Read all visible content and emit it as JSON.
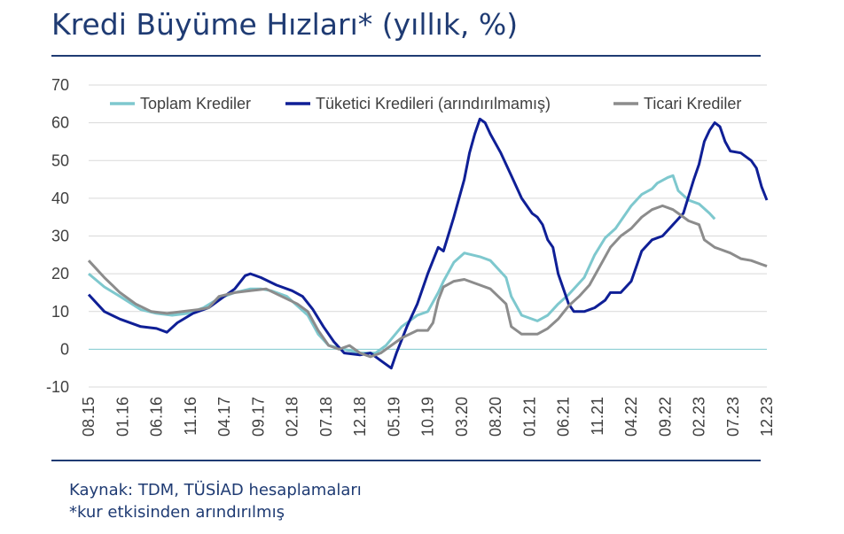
{
  "title": "Kredi Büyüme Hızları* (yıllık, %)",
  "source": "Kaynak: TDM, TÜSİAD hesaplamaları",
  "footnote": "*kur etkisinden arındırılmış",
  "chart_data": {
    "type": "line",
    "ylim": [
      -10,
      70
    ],
    "yticks": [
      -10,
      0,
      10,
      20,
      30,
      40,
      50,
      60,
      70
    ],
    "grid": true,
    "legend": "top",
    "x_tick_labels": [
      "08.15",
      "01.16",
      "06.16",
      "11.16",
      "04.17",
      "09.17",
      "02.18",
      "07.18",
      "12.18",
      "05.19",
      "10.19",
      "03.20",
      "08.20",
      "01.21",
      "06.21",
      "11.21",
      "04.22",
      "09.22",
      "02.23",
      "07.23",
      "12.23"
    ],
    "x_start": "08.15",
    "x_end": "12.23",
    "x_unit": "months",
    "series": [
      {
        "name": "Toplam Krediler",
        "color": "#7ec8ce",
        "points": [
          [
            0,
            20
          ],
          [
            3,
            16.5
          ],
          [
            6,
            14
          ],
          [
            10,
            10.5
          ],
          [
            13,
            9.5
          ],
          [
            16,
            9
          ],
          [
            19,
            9.5
          ],
          [
            22,
            11
          ],
          [
            25,
            13.5
          ],
          [
            28,
            15
          ],
          [
            31,
            16
          ],
          [
            33,
            16
          ],
          [
            35,
            15.5
          ],
          [
            38,
            14
          ],
          [
            40,
            11.5
          ],
          [
            42,
            9
          ],
          [
            44,
            4
          ],
          [
            46,
            1
          ],
          [
            49,
            0
          ],
          [
            52,
            -1
          ],
          [
            55,
            -1
          ],
          [
            57,
            1
          ],
          [
            60,
            6
          ],
          [
            63,
            9
          ],
          [
            65,
            10
          ],
          [
            67,
            15
          ],
          [
            68,
            18
          ],
          [
            70,
            23
          ],
          [
            72,
            25.5
          ],
          [
            75,
            24.5
          ],
          [
            77,
            23.5
          ],
          [
            80,
            19
          ],
          [
            81,
            14
          ],
          [
            83,
            9
          ],
          [
            86,
            7.5
          ],
          [
            88,
            9
          ],
          [
            90,
            12
          ],
          [
            92,
            14.5
          ],
          [
            95,
            19
          ],
          [
            97,
            25
          ],
          [
            99,
            29.5
          ],
          [
            101,
            32
          ],
          [
            104,
            38
          ],
          [
            106,
            41
          ],
          [
            108,
            42.5
          ],
          [
            109,
            44
          ],
          [
            111,
            45.5
          ],
          [
            112,
            46
          ],
          [
            113,
            42
          ],
          [
            115,
            39.5
          ],
          [
            117,
            38.5
          ],
          [
            119,
            36
          ],
          [
            120,
            34.5
          ]
        ]
      },
      {
        "name": "Tüketici Kredileri (arındırılmamış)",
        "color": "#0f1f96",
        "points": [
          [
            0,
            14.5
          ],
          [
            3,
            10
          ],
          [
            6,
            8
          ],
          [
            10,
            6
          ],
          [
            13,
            5.5
          ],
          [
            15,
            4.5
          ],
          [
            17,
            7
          ],
          [
            20,
            9.5
          ],
          [
            23,
            11
          ],
          [
            26,
            14
          ],
          [
            28,
            16
          ],
          [
            30,
            19.5
          ],
          [
            31,
            20
          ],
          [
            33,
            19
          ],
          [
            36,
            17
          ],
          [
            39,
            15.5
          ],
          [
            41,
            14
          ],
          [
            43,
            10.5
          ],
          [
            45,
            6
          ],
          [
            47,
            2
          ],
          [
            49,
            -1
          ],
          [
            52,
            -1.5
          ],
          [
            54,
            -1
          ],
          [
            56,
            -3
          ],
          [
            58,
            -5
          ],
          [
            59,
            -1
          ],
          [
            61,
            6
          ],
          [
            63,
            12
          ],
          [
            65,
            20
          ],
          [
            67,
            27
          ],
          [
            68,
            26
          ],
          [
            70,
            35
          ],
          [
            72,
            45
          ],
          [
            73,
            52
          ],
          [
            74,
            57
          ],
          [
            75,
            61
          ],
          [
            76,
            60
          ],
          [
            77,
            57
          ],
          [
            79,
            52
          ],
          [
            81,
            46
          ],
          [
            83,
            40
          ],
          [
            85,
            36
          ],
          [
            86,
            35
          ],
          [
            87,
            33
          ],
          [
            88,
            29
          ],
          [
            89,
            27
          ],
          [
            90,
            20
          ],
          [
            92,
            12
          ],
          [
            93,
            10
          ],
          [
            95,
            10
          ],
          [
            97,
            11
          ],
          [
            99,
            13
          ],
          [
            100,
            15
          ],
          [
            102,
            15
          ],
          [
            104,
            18
          ],
          [
            105,
            22
          ],
          [
            106,
            26
          ],
          [
            108,
            29
          ],
          [
            110,
            30
          ],
          [
            112,
            33
          ],
          [
            114,
            36
          ],
          [
            116,
            45
          ],
          [
            117,
            49
          ],
          [
            118,
            55
          ],
          [
            119,
            58
          ],
          [
            120,
            60
          ],
          [
            121,
            59
          ],
          [
            122,
            55
          ],
          [
            123,
            52.5
          ],
          [
            125,
            52
          ],
          [
            127,
            50
          ],
          [
            128,
            48
          ],
          [
            129,
            43
          ],
          [
            130,
            39.5
          ]
        ]
      },
      {
        "name": "Ticari Krediler",
        "color": "#8c8c8c",
        "points": [
          [
            0,
            23.5
          ],
          [
            3,
            19
          ],
          [
            6,
            15
          ],
          [
            9,
            12
          ],
          [
            12,
            10
          ],
          [
            15,
            9.5
          ],
          [
            18,
            10
          ],
          [
            21,
            10.5
          ],
          [
            23,
            11
          ],
          [
            25,
            14
          ],
          [
            28,
            15
          ],
          [
            31,
            15.5
          ],
          [
            34,
            16
          ],
          [
            37,
            14
          ],
          [
            40,
            12
          ],
          [
            42,
            10
          ],
          [
            44,
            5
          ],
          [
            46,
            1
          ],
          [
            48,
            0
          ],
          [
            50,
            1
          ],
          [
            52,
            -1
          ],
          [
            54,
            -2
          ],
          [
            56,
            -1
          ],
          [
            58,
            1
          ],
          [
            60,
            3
          ],
          [
            63,
            5
          ],
          [
            65,
            5
          ],
          [
            66,
            7
          ],
          [
            67,
            13
          ],
          [
            68,
            16.5
          ],
          [
            70,
            18
          ],
          [
            72,
            18.5
          ],
          [
            75,
            17
          ],
          [
            77,
            16
          ],
          [
            80,
            12
          ],
          [
            81,
            6
          ],
          [
            83,
            4
          ],
          [
            86,
            4
          ],
          [
            88,
            5.5
          ],
          [
            90,
            8
          ],
          [
            92,
            11.5
          ],
          [
            94,
            14
          ],
          [
            96,
            17
          ],
          [
            98,
            22
          ],
          [
            100,
            27
          ],
          [
            102,
            30
          ],
          [
            104,
            32
          ],
          [
            106,
            35
          ],
          [
            108,
            37
          ],
          [
            110,
            38
          ],
          [
            112,
            37
          ],
          [
            113,
            36
          ],
          [
            115,
            34
          ],
          [
            117,
            33
          ],
          [
            118,
            29
          ],
          [
            120,
            27
          ],
          [
            121,
            26.5
          ],
          [
            123,
            25.5
          ],
          [
            125,
            24
          ],
          [
            127,
            23.5
          ],
          [
            129,
            22.5
          ],
          [
            130,
            22
          ]
        ]
      }
    ]
  }
}
